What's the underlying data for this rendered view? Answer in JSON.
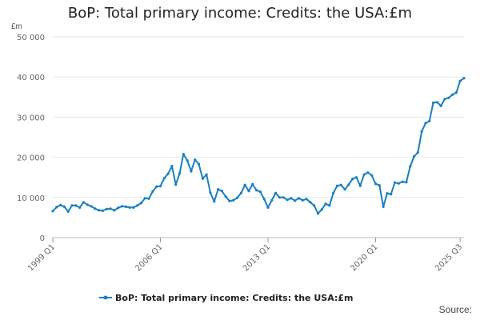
{
  "chart_data": {
    "type": "line",
    "title": "BoP: Total primary income: Credits: the USA:£m",
    "ylabel": "£m",
    "xlabel": "",
    "ylim": [
      0,
      50000
    ],
    "y_ticks": [
      0,
      10000,
      20000,
      30000,
      40000,
      50000
    ],
    "y_tick_labels": [
      "0",
      "10 000",
      "20 000",
      "30 000",
      "40 000",
      "50 000"
    ],
    "x_tick_labels": [
      "1999 Q1",
      "2006 Q1",
      "2013 Q1",
      "2020 Q1",
      "2025 Q3"
    ],
    "x_tick_index": [
      0,
      28,
      56,
      84,
      106
    ],
    "grid": true,
    "legend_position": "bottom",
    "color": "#1a7fc0",
    "series": [
      {
        "name": "BoP: Total primary income: Credits: the USA:£m",
        "values": [
          6600,
          7600,
          8100,
          7700,
          6500,
          8000,
          8000,
          7500,
          8800,
          8200,
          7800,
          7200,
          6800,
          6700,
          7100,
          7200,
          6800,
          7400,
          7800,
          7700,
          7500,
          7500,
          8000,
          8600,
          9800,
          9700,
          11500,
          12700,
          12800,
          14800,
          15900,
          17800,
          13200,
          16000,
          20800,
          19200,
          16500,
          19400,
          18300,
          14700,
          15700,
          11200,
          9000,
          12000,
          11600,
          10200,
          9100,
          9300,
          9900,
          11100,
          13100,
          11600,
          13300,
          11800,
          11400,
          9600,
          7500,
          9300,
          11100,
          10000,
          10000,
          9400,
          9800,
          9200,
          9800,
          9300,
          9600,
          8800,
          8000,
          6000,
          7000,
          8400,
          8000,
          11100,
          12900,
          13100,
          12000,
          13200,
          14600,
          15000,
          12900,
          15700,
          16200,
          15500,
          13400,
          13000,
          7700,
          11000,
          10800,
          13700,
          13500,
          13900,
          13800,
          17700,
          20200,
          21200,
          26400,
          28500,
          29000,
          33600,
          33700,
          32800,
          34500,
          34800,
          35600,
          36100,
          39000,
          39700
        ]
      }
    ]
  },
  "source_label": "Source:"
}
